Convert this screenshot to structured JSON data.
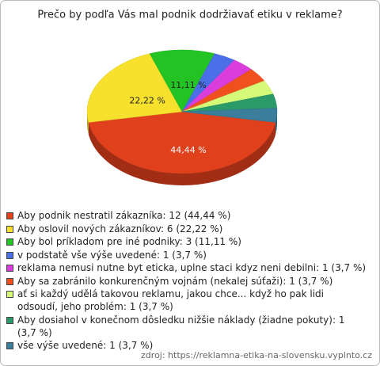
{
  "chart_data": {
    "type": "pie",
    "title": "Prečo by podľa Vás mal podnik dodržiavať etiku v reklame?",
    "categories": [
      "Aby podnik nestratil zákazníka: 12 (44,44 %)",
      "Aby oslovil nových zákazníkov: 6 (22,22 %)",
      "Aby bol príkladom pre iné podniky: 3 (11,11 %)",
      "v podstatě vše výše uvedené: 1 (3,7 %)",
      "reklama nemusi nutne byt eticka, uplne staci kdyz neni debilni: 1 (3,7 %)",
      "Aby sa zabránilo konkurenčným vojnám (nekalej súťaži): 1 (3,7 %)",
      "ať si každý udělá takovou reklamu, jakou chce... když ho pak lidi odsoudí, jeho problém: 1 (3,7 %)",
      "Aby dosiahol v konečnom dôsledku nižšie náklady (žiadne pokuty): 1 (3,7 %)",
      "vše výše uvedené: 1 (3,7 %)"
    ],
    "values": [
      44.44,
      22.22,
      11.11,
      3.7,
      3.7,
      3.7,
      3.7,
      3.7,
      3.7
    ],
    "value_labels": [
      "44,44 %",
      "22,22 %",
      "11,11 %",
      null,
      null,
      null,
      null,
      null,
      null
    ],
    "colors": [
      "#e0401c",
      "#f7e12c",
      "#22c322",
      "#4a6fe8",
      "#d93ddb",
      "#f0501e",
      "#d4fa78",
      "#2a9a68",
      "#3a7e9c"
    ],
    "source": "zdroj: https://reklamna-etika-na-slovensku.vyplnto.cz"
  }
}
